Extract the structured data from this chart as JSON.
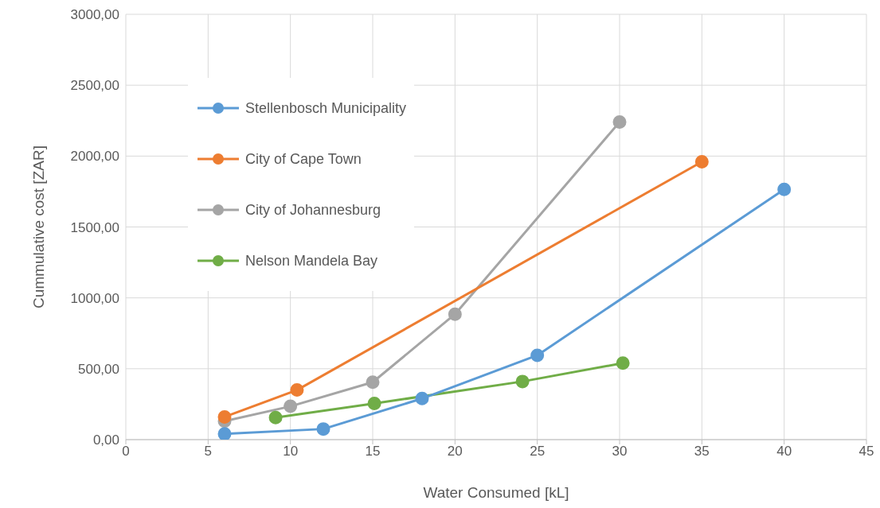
{
  "chart_data": {
    "type": "line",
    "xlabel": "Water Consumed [kL]",
    "ylabel": "Cummulative cost  [ZAR]",
    "xlim": [
      0,
      45
    ],
    "xticks": [
      0,
      5,
      10,
      15,
      20,
      25,
      30,
      35,
      40,
      45
    ],
    "ylim": [
      0,
      3000
    ],
    "yticks": [
      {
        "value": 0,
        "label": "0,00"
      },
      {
        "value": 500,
        "label": "500,00"
      },
      {
        "value": 1000,
        "label": "1000,00"
      },
      {
        "value": 1500,
        "label": "1500,00"
      },
      {
        "value": 2000,
        "label": "2000,00"
      },
      {
        "value": 2500,
        "label": "2500,00"
      },
      {
        "value": 3000,
        "label": "3000,00"
      }
    ],
    "grid": true,
    "legend": "top left",
    "marker": "circle",
    "line_style": "solid",
    "series": [
      {
        "name": "Stellenbosch Municipality",
        "color": "#5b9bd5",
        "x": [
          6,
          12,
          18,
          25,
          40
        ],
        "values": [
          40,
          75,
          290,
          595,
          1765
        ]
      },
      {
        "name": "City of Cape Town",
        "color": "#ed7d31",
        "x": [
          6,
          10.4,
          35
        ],
        "values": [
          160,
          350,
          1960
        ]
      },
      {
        "name": "City of Johannesburg",
        "color": "#a5a5a5",
        "x": [
          6,
          10,
          15,
          20,
          30
        ],
        "values": [
          130,
          235,
          405,
          885,
          2240
        ]
      },
      {
        "name": "Nelson Mandela Bay",
        "color": "#70ad47",
        "x": [
          9.1,
          15.1,
          24.1,
          30.2
        ],
        "values": [
          155,
          255,
          410,
          540
        ]
      }
    ]
  }
}
